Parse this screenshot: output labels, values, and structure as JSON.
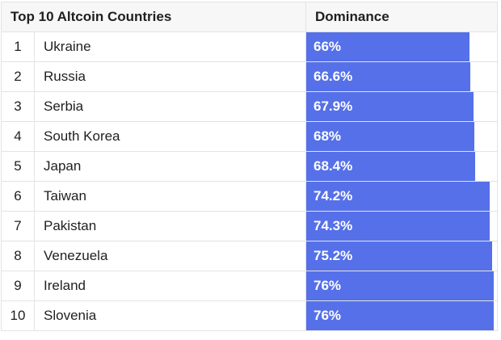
{
  "chart_data": {
    "type": "table",
    "title": "Top 10 Altcoin Countries",
    "columns": [
      "",
      "Top 10 Altcoin Countries",
      "Dominance"
    ],
    "rows": [
      {
        "rank": "1",
        "country": "Ukraine",
        "dominance": 66,
        "label": "66%"
      },
      {
        "rank": "2",
        "country": "Russia",
        "dominance": 66.6,
        "label": "66.6%"
      },
      {
        "rank": "3",
        "country": "Serbia",
        "dominance": 67.9,
        "label": "67.9%"
      },
      {
        "rank": "4",
        "country": "South Korea",
        "dominance": 68,
        "label": "68%"
      },
      {
        "rank": "5",
        "country": "Japan",
        "dominance": 68.4,
        "label": "68.4%"
      },
      {
        "rank": "6",
        "country": "Taiwan",
        "dominance": 74.2,
        "label": "74.2%"
      },
      {
        "rank": "7",
        "country": "Pakistan",
        "dominance": 74.3,
        "label": "74.3%"
      },
      {
        "rank": "8",
        "country": "Venezuela",
        "dominance": 75.2,
        "label": "75.2%"
      },
      {
        "rank": "9",
        "country": "Ireland",
        "dominance": 76,
        "label": "76%"
      },
      {
        "rank": "10",
        "country": "Slovenia",
        "dominance": 76,
        "label": "76%"
      }
    ],
    "bar_color": "#5570e8"
  }
}
